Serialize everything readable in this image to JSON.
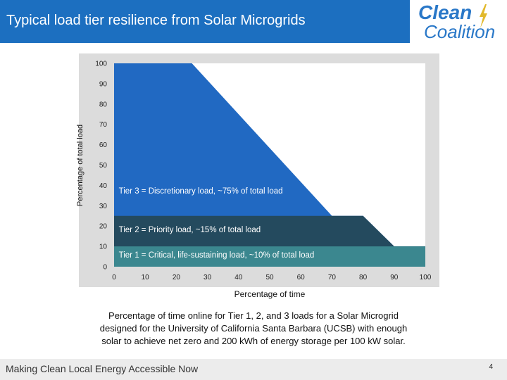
{
  "slide": {
    "title": "Typical load tier resilience from Solar Microgrids",
    "logo_line1": "Clean",
    "logo_line2": "Coalition",
    "caption": "Percentage of time online for Tier 1, 2, and 3 loads for a Solar Microgrid designed for the University of California Santa Barbara (UCSB) with enough solar to achieve net zero and 200 kWh of energy storage per 100 kW solar.",
    "tagline": "Making Clean Local Energy Accessible Now",
    "page_number": "4"
  },
  "colors": {
    "header": "#1c6fc0",
    "plot_bg": "#ffffff",
    "frame_bg": "#dcdcdc",
    "tier3": "#2169c2",
    "tier2": "#244a5e",
    "tier1": "#3b878f",
    "label_text": "#ffffff",
    "logo": "#2a78c8",
    "logo_bolt": "#e2b92c"
  },
  "chart_data": {
    "type": "area",
    "xlabel": "Percentage of time",
    "ylabel": "Percentage of total load",
    "xlim": [
      0,
      100
    ],
    "ylim": [
      0,
      100
    ],
    "x_ticks": [
      0,
      10,
      20,
      30,
      40,
      50,
      60,
      70,
      80,
      90,
      100
    ],
    "y_ticks": [
      0,
      10,
      20,
      30,
      40,
      50,
      60,
      70,
      80,
      90,
      100
    ],
    "grid": false,
    "legend": "none",
    "series": [
      {
        "name": "Tier 3 = Discretionary load, ~75% of total load",
        "x": [
          0,
          25,
          70,
          80,
          90,
          100
        ],
        "y": [
          100,
          100,
          25,
          25,
          10,
          10
        ]
      },
      {
        "name": "Tier 2 = Priority load, ~15% of total load",
        "x": [
          0,
          80,
          90,
          100
        ],
        "y": [
          25,
          25,
          10,
          10
        ]
      },
      {
        "name": "Tier 1 = Critical, life-sustaining load, ~10% of total load",
        "x": [
          0,
          100
        ],
        "y": [
          10,
          10
        ]
      }
    ],
    "annotations": [
      {
        "text": "Tier 3 = Discretionary load, ~75% of total load",
        "x": 1.5,
        "y": 36
      },
      {
        "text": "Tier 2 = Priority load, ~15% of total load",
        "x": 1.5,
        "y": 17
      },
      {
        "text": "Tier 1 = Critical, life-sustaining load, ~10% of total load",
        "x": 1.5,
        "y": 4.5
      }
    ]
  }
}
